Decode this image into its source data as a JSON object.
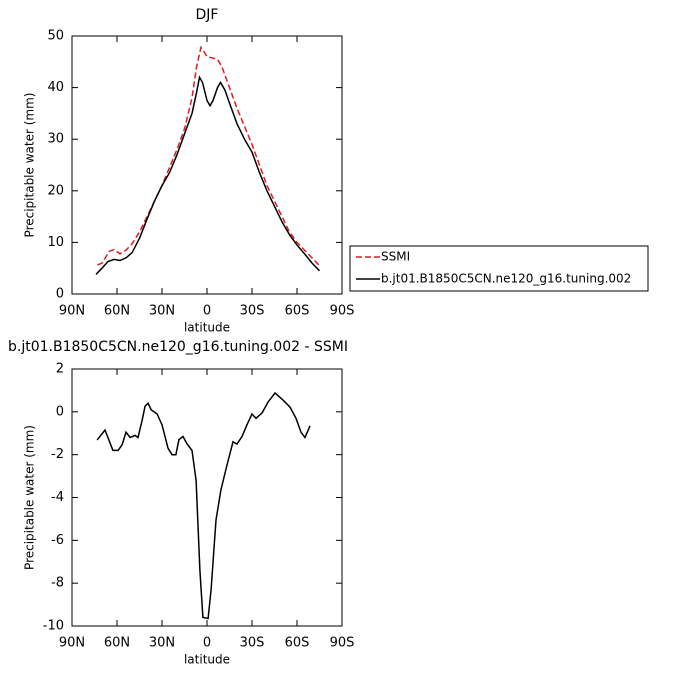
{
  "chart_data": [
    {
      "type": "line",
      "title": "DJF",
      "xlabel": "latitude",
      "ylabel": "Precipitable water (mm)",
      "xlim": [
        90,
        -90
      ],
      "xticks": [
        {
          "value": 90,
          "label": "90N"
        },
        {
          "value": 60,
          "label": "60N"
        },
        {
          "value": 30,
          "label": "30N"
        },
        0,
        {
          "value": -30,
          "label": "30S"
        },
        {
          "value": -60,
          "label": "60S"
        },
        {
          "value": -90,
          "label": "90S"
        }
      ],
      "ylim": [
        0,
        50
      ],
      "yticks": [
        0,
        10,
        20,
        30,
        40,
        50
      ],
      "legend": "right",
      "series": [
        {
          "name": "SSMI",
          "color": "#e41a1c",
          "line_style": "dashed",
          "x": [
            73,
            70,
            65,
            62,
            58,
            54,
            50,
            45,
            40,
            35,
            30,
            25,
            20,
            15,
            10,
            7,
            4,
            2,
            0,
            -3,
            -7,
            -10,
            -15,
            -20,
            -25,
            -30,
            -35,
            -40,
            -45,
            -50,
            -55,
            -60,
            -65,
            -70,
            -75
          ],
          "values": [
            5.6,
            6,
            8.3,
            8.6,
            7.8,
            8.5,
            9.7,
            12,
            15,
            18,
            21,
            24.5,
            28,
            32,
            38,
            44,
            47.8,
            47,
            46,
            45.8,
            45.5,
            44,
            40,
            36,
            32.5,
            29,
            25,
            21,
            18,
            15,
            12,
            10,
            8.5,
            7,
            5.5
          ]
        },
        {
          "name": "b.jt01.B1850C5CN.ne120_g16.tuning.002",
          "color": "#000000",
          "line_style": "solid",
          "x": [
            74,
            70,
            66,
            62,
            58,
            54,
            50,
            45,
            40,
            35,
            30,
            25,
            20,
            15,
            10,
            7,
            5,
            3,
            0,
            -2,
            -4,
            -7,
            -9,
            -12,
            -15,
            -20,
            -25,
            -30,
            -35,
            -40,
            -45,
            -50,
            -55,
            -60,
            -65,
            -70,
            -75
          ],
          "values": [
            3.8,
            5,
            6.3,
            6.7,
            6.5,
            7,
            8,
            10.8,
            14.5,
            18,
            21,
            23.5,
            27,
            31,
            35,
            39,
            42,
            41,
            37.5,
            36.5,
            37.5,
            40,
            41,
            39.5,
            37,
            33,
            30,
            27.5,
            23.5,
            20,
            17,
            14,
            11.5,
            9.5,
            7.8,
            6,
            4.5
          ]
        }
      ]
    },
    {
      "type": "line",
      "title": "b.jt01.B1850C5CN.ne120_g16.tuning.002 - SSMI",
      "xlabel": "latitude",
      "ylabel": "Precipitable water (mm)",
      "xlim": [
        90,
        -90
      ],
      "xticks": [
        {
          "value": 90,
          "label": "90N"
        },
        {
          "value": 60,
          "label": "60N"
        },
        {
          "value": 30,
          "label": "30N"
        },
        0,
        {
          "value": -30,
          "label": "30S"
        },
        {
          "value": -60,
          "label": "60S"
        },
        {
          "value": -90,
          "label": "90S"
        }
      ],
      "ylim": [
        -10,
        2
      ],
      "yticks": [
        -10,
        -8,
        -6,
        -4,
        -2,
        0,
        2
      ],
      "series": [
        {
          "color": "#000000",
          "line_style": "solid",
          "x": [
            73.3,
            68,
            62.7,
            59.3,
            56.7,
            54,
            51.3,
            48,
            46,
            43.3,
            41.3,
            39.3,
            37.3,
            33.3,
            30,
            26,
            23.3,
            20.7,
            18.7,
            16,
            13.3,
            10,
            7.3,
            4.7,
            2.7,
            -0.7,
            -2.7,
            -6,
            -9.3,
            -13.3,
            -17.3,
            -20,
            -23.3,
            -26.7,
            -30,
            -32.7,
            -36.7,
            -40.7,
            -45.3,
            -50.7,
            -55.3,
            -59.3,
            -62.7,
            -65.3,
            -68.7
          ],
          "values": [
            -1.32,
            -0.85,
            -1.8,
            -1.8,
            -1.55,
            -0.95,
            -1.2,
            -1.1,
            -1.2,
            -0.4,
            0.27,
            0.4,
            0.1,
            -0.1,
            -0.6,
            -1.7,
            -2,
            -2,
            -1.3,
            -1.15,
            -1.5,
            -1.8,
            -3.2,
            -7.4,
            -9.6,
            -9.65,
            -8.3,
            -5.05,
            -3.65,
            -2.5,
            -1.4,
            -1.5,
            -1.15,
            -0.6,
            -0.1,
            -0.3,
            -0.05,
            0.45,
            0.88,
            0.55,
            0.22,
            -0.3,
            -0.95,
            -1.2,
            -0.65
          ]
        }
      ]
    }
  ]
}
